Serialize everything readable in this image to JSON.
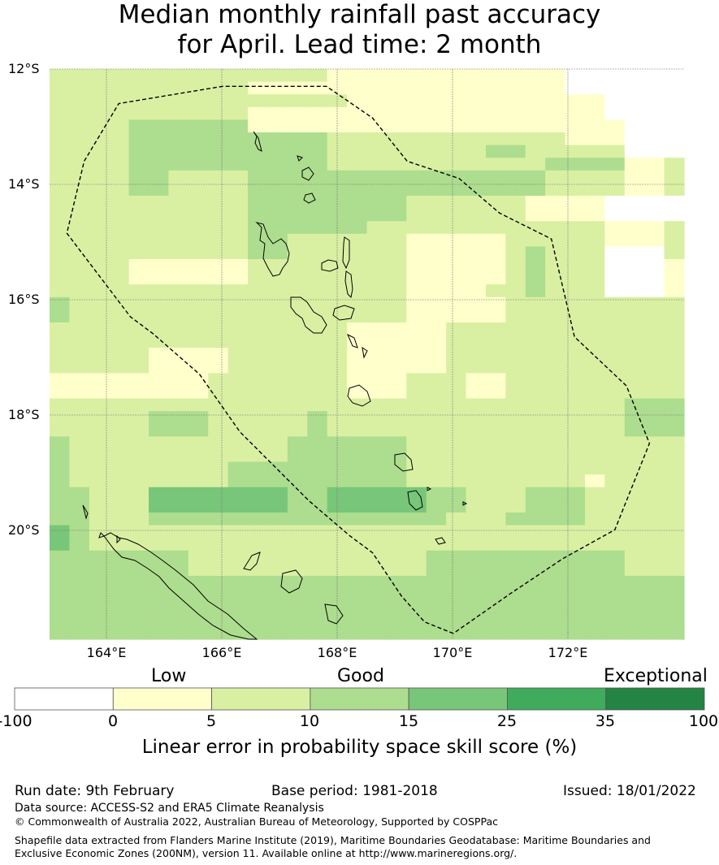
{
  "title": {
    "line1": "Median monthly rainfall past accuracy",
    "line2": "for April. Lead time: 2 month"
  },
  "map": {
    "lat_labels": [
      "12°S",
      "14°S",
      "16°S",
      "18°S",
      "20°S"
    ],
    "lon_labels": [
      "164°E",
      "166°E",
      "168°E",
      "170°E",
      "172°E"
    ],
    "lon_range": [
      163,
      174
    ],
    "lat_range": [
      -21.9,
      -12
    ],
    "grid": [
      "22222222222222111111111111000000",
      "22222222221111111111111111000000",
      "22222222222222211111111111110000",
      "22222222221111111111111111110000",
      "22223333331111111111111111111000",
      "22223333333333222222222222111000",
      "22223333333333222222223322222000",
      "22223333333333222222222223333112",
      "22223322223333333333333332222112",
      "22223322223333333333333332222112",
      "22222222223333333322222211110000",
      "22222222223333333322222211110000",
      "22222222223333332222222222221112",
      "22222222223322222211111222221112",
      "22222222223322222211111232220002",
      "22221111112222222211111232220001",
      "22221111112222222211111232220001",
      "22222222222222222211112232220001",
      "32222222222222222211111222222222",
      "32222222222222222211111222222222",
      "22222222222222211111222222222222",
      "22222222222222211111222222222222",
      "22222111122222211111222222222222",
      "22222111122222211111222222222222",
      "11111111222222211122211222222222",
      "11111111222222211122211222222222",
      "22222222222222222222222222222333",
      "22222333222223222222222222222333",
      "22222333222223222222222222222333",
      "32222222222233333322222222222222",
      "32222222222233333322222222222222",
      "32222222233333333322222222222222",
      "32222222233333333322222222212222",
      "33222444444433444443322233322222",
      "33222444444433444443322233322222",
      "33222333333333333333222333322222",
      "43222222222222222222222222222222",
      "43222222222222222222222222222222",
      "33333332222222222223333333333222",
      "33333332222222222223333333333222",
      "33333333333333333333333333333333",
      "33333333333333333333333333333333",
      "33333333333333333333333333333333",
      "33333333333333333333333333333333",
      "33333333333333333333333333333333"
    ],
    "eez_boundary": [
      [
        170.0,
        -21.8
      ],
      [
        169.5,
        -21.6
      ],
      [
        169.1,
        -21.15
      ],
      [
        168.6,
        -20.4
      ],
      [
        168.2,
        -20.1
      ],
      [
        167.5,
        -19.5
      ],
      [
        166.3,
        -18.3
      ],
      [
        165.6,
        -17.3
      ],
      [
        164.8,
        -16.6
      ],
      [
        164.4,
        -16.3
      ],
      [
        163.3,
        -14.85
      ],
      [
        163.6,
        -13.6
      ],
      [
        164.2,
        -12.6
      ],
      [
        166.0,
        -12.3
      ],
      [
        167.8,
        -12.3
      ],
      [
        168.6,
        -12.85
      ],
      [
        169.2,
        -13.6
      ],
      [
        170.1,
        -13.9
      ],
      [
        170.8,
        -14.5
      ],
      [
        171.7,
        -14.95
      ],
      [
        172.1,
        -16.65
      ],
      [
        173.0,
        -17.5
      ],
      [
        173.4,
        -18.5
      ],
      [
        172.8,
        -20.0
      ],
      [
        171.9,
        -20.5
      ],
      [
        171.0,
        -21.1
      ],
      [
        170.0,
        -21.8
      ]
    ]
  },
  "colorbar": {
    "category_labels": [
      "Low",
      "Good",
      "Exceptional"
    ],
    "ticks": [
      "-100",
      "0",
      "5",
      "10",
      "15",
      "25",
      "35",
      "100"
    ],
    "colors": [
      "#ffffff",
      "#ffffcc",
      "#d9f0a3",
      "#addd8e",
      "#78c679",
      "#41ab5d",
      "#238443"
    ],
    "title": "Linear error in probability space skill score (%)"
  },
  "footer": {
    "run_date": "Run date: 9th February",
    "base_period": "Base period: 1981-2018",
    "issued": "Issued: 18/01/2022",
    "data_source": "Data source: ACCESS-S2 and ERA5 Climate Reanalysis",
    "copyright": "© Commonwealth of Australia 2022, Australian Bureau of Meteorology, Supported by COSPPac",
    "shapefile": "Shapefile data extracted from Flanders Marine Institute (2019), Maritime Boundaries Geodatabase: Maritime Boundaries and Exclusive Economic Zones (200NM), version 11. Available online at http://www.marineregions.org/."
  }
}
